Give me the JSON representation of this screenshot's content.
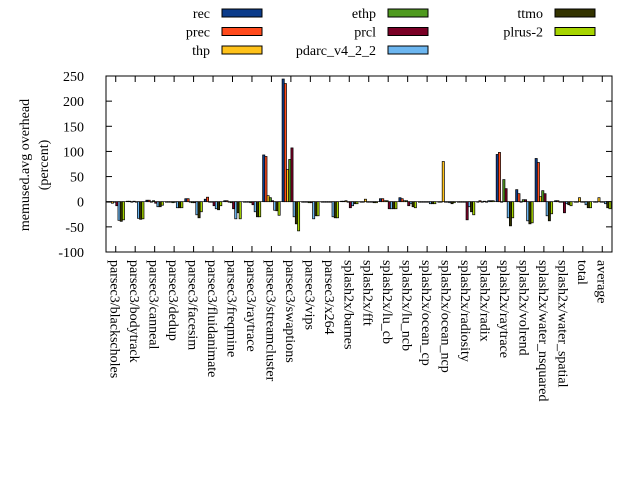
{
  "chart_data": {
    "type": "bar",
    "title": "",
    "xlabel": "",
    "ylabel": [
      "memused.avg overhead",
      "(percent)"
    ],
    "ylim": [
      -100,
      250
    ],
    "yticks": [
      -100,
      -50,
      0,
      50,
      100,
      150,
      200,
      250
    ],
    "grid": false,
    "legend_placement": "top, outside, 3 columns",
    "categories": [
      "parsec3/blackscholes",
      "parsec3/bodytrack",
      "parsec3/canneal",
      "parsec3/dedup",
      "parsec3/facesim",
      "parsec3/fluidanimate",
      "parsec3/freqmine",
      "parsec3/raytrace",
      "parsec3/streamcluster",
      "parsec3/swaptions",
      "parsec3/vips",
      "parsec3/x264",
      "splash2x/barnes",
      "splash2x/fft",
      "splash2x/lu_cb",
      "splash2x/lu_ncb",
      "splash2x/ocean_cp",
      "splash2x/ocean_ncp",
      "splash2x/radiosity",
      "splash2x/radix",
      "splash2x/raytrace",
      "splash2x/volrend",
      "splash2x/water_nsquared",
      "splash2x/water_spatial",
      "total",
      "average"
    ],
    "series": [
      {
        "name": "rec",
        "color": "#0b3b8a",
        "values": [
          -1,
          1,
          3,
          -1,
          6,
          5,
          2,
          0,
          93,
          244,
          -1,
          0,
          1,
          0,
          6,
          8,
          0,
          0,
          0,
          0,
          94,
          24,
          86,
          2,
          0,
          0
        ]
      },
      {
        "name": "prec",
        "color": "#ff4a1c",
        "values": [
          -1,
          1,
          3,
          -1,
          6,
          9,
          2,
          0,
          90,
          235,
          -1,
          0,
          1,
          0,
          6,
          6,
          0,
          0,
          0,
          2,
          98,
          16,
          78,
          2,
          0,
          0
        ]
      },
      {
        "name": "thp",
        "color": "#ffc21a",
        "values": [
          -3,
          0,
          0,
          0,
          0,
          0,
          0,
          0,
          12,
          64,
          0,
          0,
          2,
          5,
          2,
          2,
          0,
          80,
          0,
          0,
          0,
          0,
          10,
          0,
          8,
          8
        ]
      },
      {
        "name": "ethp",
        "color": "#4f9a1f",
        "values": [
          -1,
          1,
          2,
          -2,
          -2,
          0,
          -2,
          -2,
          8,
          84,
          -2,
          -1,
          0,
          0,
          2,
          2,
          0,
          0,
          0,
          1,
          44,
          4,
          22,
          0,
          0,
          0
        ]
      },
      {
        "name": "prcl",
        "color": "#7a0026",
        "values": [
          -8,
          0,
          -3,
          0,
          -2,
          -8,
          -14,
          -6,
          2,
          107,
          -2,
          0,
          -12,
          -1,
          -14,
          -8,
          0,
          0,
          -36,
          0,
          26,
          4,
          16,
          -22,
          0,
          0
        ]
      },
      {
        "name": "pdarc_v4_2_2",
        "color": "#6cb6f0",
        "values": [
          -37,
          -33,
          -10,
          -12,
          -26,
          -14,
          -34,
          -20,
          -17,
          -30,
          -34,
          -30,
          -8,
          0,
          -14,
          -4,
          -4,
          -2,
          -10,
          2,
          -32,
          -38,
          -28,
          -4,
          -6,
          -4
        ]
      },
      {
        "name": "ttmo",
        "color": "#333300",
        "values": [
          -39,
          -35,
          -10,
          -12,
          -32,
          -16,
          -22,
          -30,
          -18,
          -44,
          -28,
          -32,
          -4,
          -2,
          -14,
          -10,
          -4,
          -4,
          -20,
          2,
          -48,
          -44,
          -38,
          -6,
          -12,
          -12
        ]
      },
      {
        "name": "plrus-2",
        "color": "#a6d400",
        "values": [
          -36,
          -34,
          -7,
          -12,
          -20,
          -8,
          -34,
          -30,
          -27,
          -58,
          -28,
          -32,
          -4,
          -2,
          -14,
          -12,
          -4,
          -2,
          -26,
          2,
          -32,
          -42,
          -24,
          -8,
          -12,
          -14
        ]
      }
    ]
  }
}
